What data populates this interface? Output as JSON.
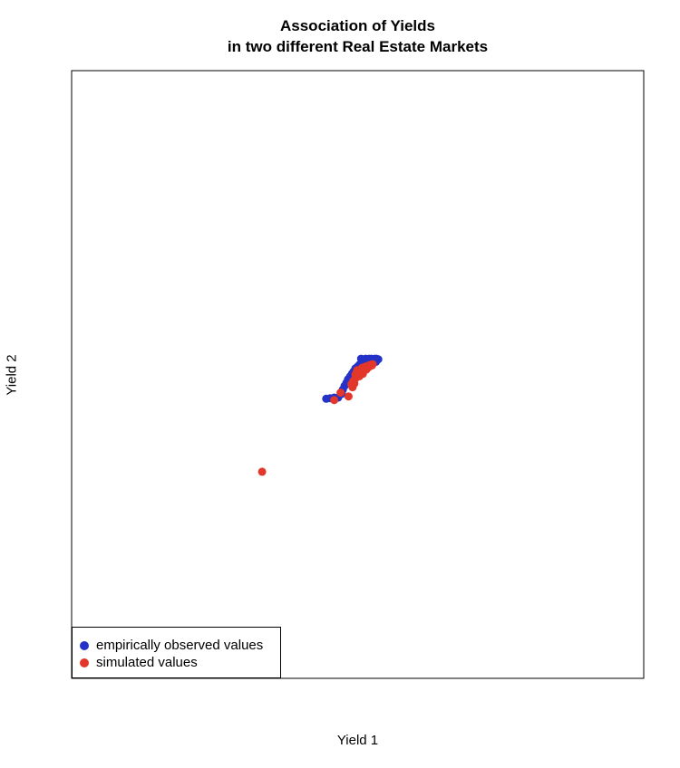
{
  "chart_data": {
    "type": "scatter",
    "title_line1": "Association of Yields",
    "title_line2": "in two different Real Estate Markets",
    "xlabel": "Yield 1",
    "ylabel": "Yield 2",
    "xlim": [
      0,
      1
    ],
    "ylim": [
      0,
      1
    ],
    "axis_ticks_shown": false,
    "grid": false,
    "legend_position": "bottom-left",
    "legend": [
      {
        "label": "empirically observed values",
        "color": "#2432c8"
      },
      {
        "label": "simulated values",
        "color": "#e2372a"
      }
    ],
    "series": [
      {
        "name": "empirically observed values",
        "color": "#2432c8",
        "points": [
          [
            0.445,
            0.46
          ],
          [
            0.452,
            0.461
          ],
          [
            0.459,
            0.462
          ],
          [
            0.466,
            0.462
          ],
          [
            0.472,
            0.468
          ],
          [
            0.474,
            0.475
          ],
          [
            0.477,
            0.481
          ],
          [
            0.48,
            0.486
          ],
          [
            0.483,
            0.492
          ],
          [
            0.487,
            0.497
          ],
          [
            0.49,
            0.501
          ],
          [
            0.493,
            0.505
          ],
          [
            0.496,
            0.51
          ],
          [
            0.5,
            0.513
          ],
          [
            0.503,
            0.516
          ],
          [
            0.507,
            0.52
          ],
          [
            0.511,
            0.522
          ],
          [
            0.506,
            0.526
          ],
          [
            0.509,
            0.525
          ],
          [
            0.514,
            0.526
          ],
          [
            0.516,
            0.524
          ],
          [
            0.52,
            0.526
          ],
          [
            0.524,
            0.526
          ],
          [
            0.527,
            0.525
          ],
          [
            0.53,
            0.526
          ],
          [
            0.533,
            0.526
          ],
          [
            0.536,
            0.525
          ],
          [
            0.529,
            0.52
          ],
          [
            0.532,
            0.521
          ],
          [
            0.498,
            0.5
          ],
          [
            0.486,
            0.487
          ],
          [
            0.488,
            0.493
          ],
          [
            0.505,
            0.517
          ],
          [
            0.519,
            0.522
          ]
        ]
      },
      {
        "name": "simulated values",
        "color": "#e2372a",
        "points": [
          [
            0.333,
            0.34
          ],
          [
            0.459,
            0.458
          ],
          [
            0.47,
            0.47
          ],
          [
            0.484,
            0.464
          ],
          [
            0.491,
            0.479
          ],
          [
            0.494,
            0.485
          ],
          [
            0.495,
            0.492
          ],
          [
            0.496,
            0.5
          ],
          [
            0.498,
            0.503
          ],
          [
            0.5,
            0.498
          ],
          [
            0.502,
            0.506
          ],
          [
            0.504,
            0.502
          ],
          [
            0.505,
            0.508
          ],
          [
            0.507,
            0.505
          ],
          [
            0.508,
            0.511
          ],
          [
            0.51,
            0.507
          ],
          [
            0.511,
            0.512
          ],
          [
            0.513,
            0.509
          ],
          [
            0.514,
            0.513
          ],
          [
            0.516,
            0.511
          ],
          [
            0.517,
            0.514
          ],
          [
            0.519,
            0.512
          ],
          [
            0.52,
            0.515
          ],
          [
            0.522,
            0.514
          ],
          [
            0.523,
            0.516
          ],
          [
            0.525,
            0.515
          ],
          [
            0.526,
            0.517
          ],
          [
            0.497,
            0.495
          ],
          [
            0.503,
            0.497
          ],
          [
            0.509,
            0.501
          ],
          [
            0.489,
            0.484
          ],
          [
            0.492,
            0.489
          ],
          [
            0.515,
            0.508
          ],
          [
            0.499,
            0.507
          ]
        ]
      }
    ]
  }
}
